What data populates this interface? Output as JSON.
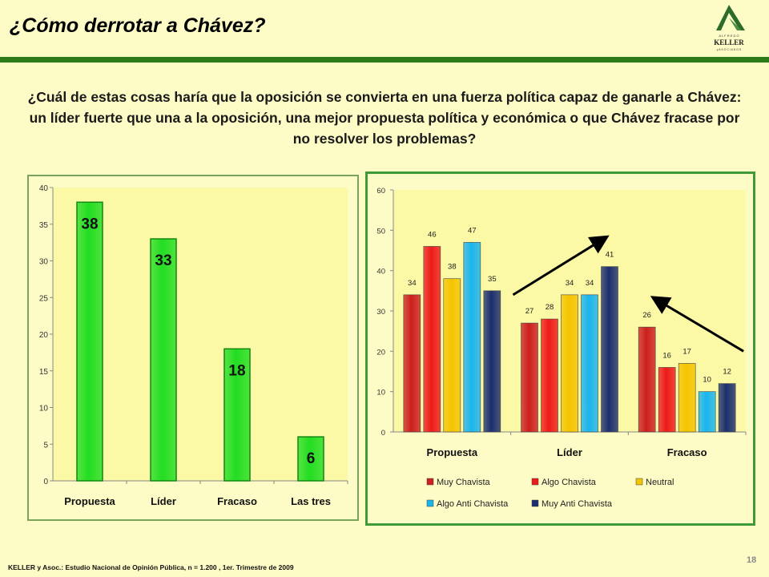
{
  "header": {
    "title": "¿Cómo derrotar a Chávez?",
    "logo": {
      "top": "A L F R E D O",
      "name": "KELLER",
      "bottom": "y  A S O C I A D O S"
    }
  },
  "question": "¿Cuál de estas cosas haría que la oposición se convierta en una fuerza política capaz de ganarle a Chávez: un líder fuerte que una a la oposición, una mejor propuesta política y económica o que Chávez fracase por no resolver los problemas?",
  "footer": {
    "source": "KELLER y Asoc.: Estudio Nacional de Opinión Pública, n = 1.200 , 1er. Trimestre de 2009",
    "page": "18"
  },
  "colors": {
    "accent_green": "#2d7a18",
    "bar_green": "#22dd22",
    "muy_chavista": "#cc1f1f",
    "algo_chavista": "#ee1a1a",
    "neutral": "#f5c400",
    "algo_anti": "#1ab4ee",
    "muy_anti": "#1c2f6e"
  },
  "chart_data": [
    {
      "type": "bar",
      "categories": [
        "Propuesta",
        "Líder",
        "Fracaso",
        "Las tres"
      ],
      "values": [
        38,
        33,
        18,
        6
      ],
      "ylim": [
        0,
        40
      ],
      "yticks": [
        "0",
        "5",
        "10",
        "15",
        "20",
        "25",
        "30",
        "35",
        "40"
      ],
      "grid": false
    },
    {
      "type": "bar",
      "categories": [
        "Propuesta",
        "Líder",
        "Fracaso"
      ],
      "series": [
        {
          "name": "Muy Chavista",
          "values": [
            34,
            27,
            26
          ]
        },
        {
          "name": "Algo Chavista",
          "values": [
            46,
            28,
            16
          ]
        },
        {
          "name": "Neutral",
          "values": [
            38,
            34,
            17
          ]
        },
        {
          "name": "Algo Anti Chavista",
          "values": [
            47,
            34,
            10
          ]
        },
        {
          "name": "Muy Anti Chavista",
          "values": [
            35,
            41,
            12
          ]
        }
      ],
      "ylim": [
        0,
        60
      ],
      "yticks": [
        "0",
        "10",
        "20",
        "30",
        "40",
        "50",
        "60"
      ],
      "grid": false,
      "legend": "bottom"
    }
  ]
}
